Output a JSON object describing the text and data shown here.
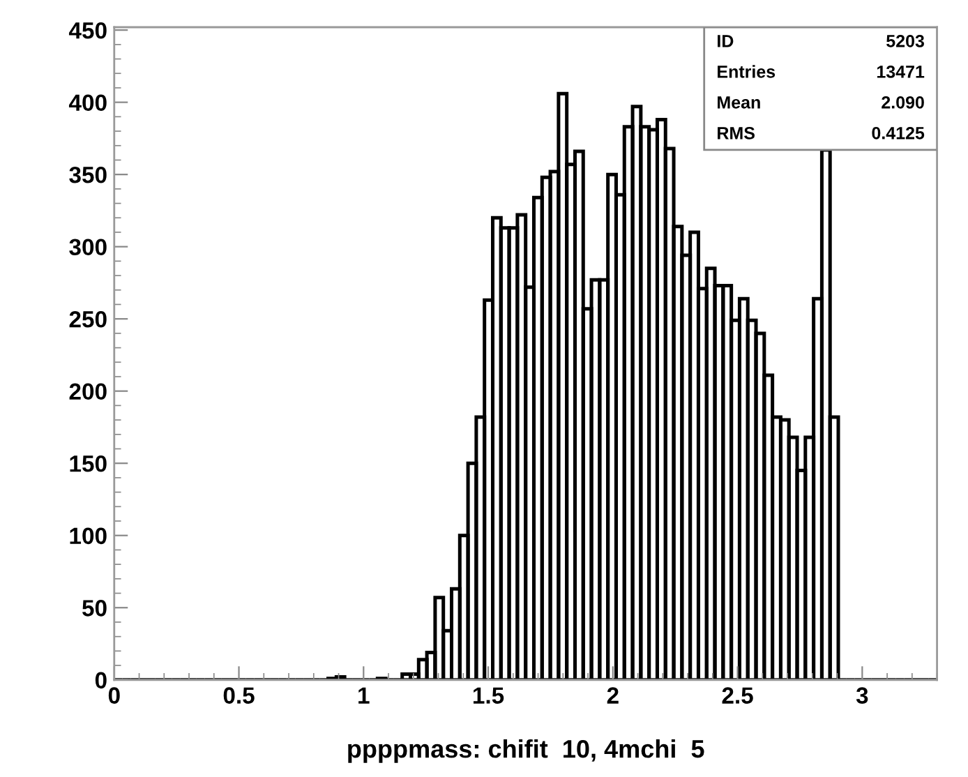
{
  "chart_data": {
    "type": "histogram",
    "bins": [
      0,
      0.033,
      0.066,
      0.099,
      0.132,
      0.165,
      0.198,
      0.231,
      0.264,
      0.297,
      0.33,
      0.363,
      0.396,
      0.429,
      0.462,
      0.495,
      0.528,
      0.561,
      0.594,
      0.627,
      0.66,
      0.693,
      0.726,
      0.759,
      0.792,
      0.825,
      0.858,
      0.891,
      0.924,
      0.957,
      0.99,
      1.023,
      1.056,
      1.089,
      1.122,
      1.155,
      1.188,
      1.221,
      1.254,
      1.287,
      1.32,
      1.353,
      1.386,
      1.419,
      1.452,
      1.485,
      1.518,
      1.551,
      1.584,
      1.617,
      1.65,
      1.683,
      1.716,
      1.749,
      1.782,
      1.815,
      1.848,
      1.881,
      1.914,
      1.947,
      1.98,
      2.013,
      2.046,
      2.079,
      2.112,
      2.145,
      2.178,
      2.211,
      2.244,
      2.277,
      2.31,
      2.343,
      2.376,
      2.409,
      2.442,
      2.475,
      2.508,
      2.541,
      2.574,
      2.607,
      2.64,
      2.673,
      2.706,
      2.739,
      2.772,
      2.805,
      2.838,
      2.871,
      2.904,
      2.937,
      2.97,
      3.003,
      3.036,
      3.069,
      3.102,
      3.135,
      3.168,
      3.201,
      3.234,
      3.267,
      3.3
    ],
    "values": [
      0,
      0,
      0,
      0,
      0,
      0,
      0,
      0,
      0,
      0,
      0,
      0,
      0,
      0,
      0,
      0,
      0,
      0,
      0,
      0,
      0,
      0,
      0,
      0,
      0,
      0,
      1,
      2,
      0,
      0,
      0,
      0,
      1,
      0,
      0,
      4,
      4,
      14,
      19,
      57,
      34,
      63,
      100,
      150,
      182,
      263,
      320,
      313,
      313,
      322,
      272,
      334,
      348,
      352,
      406,
      357,
      366,
      257,
      277,
      277,
      350,
      336,
      383,
      397,
      383,
      381,
      388,
      368,
      314,
      294,
      310,
      271,
      285,
      273,
      273,
      249,
      264,
      249,
      240,
      211,
      182,
      180,
      168,
      145,
      168,
      264,
      367,
      182,
      0,
      0,
      0,
      0,
      0,
      0,
      0,
      0,
      0,
      0,
      0,
      0
    ],
    "color": "#000000",
    "xlabel": "ppppmass: chifit  10, 4mchi  5",
    "xlim": [
      0,
      3.3
    ],
    "ylim": [
      0,
      452
    ],
    "xticks": [
      0,
      0.5,
      1,
      1.5,
      2,
      2.5,
      3
    ],
    "yticks": [
      0,
      50,
      100,
      150,
      200,
      250,
      300,
      350,
      400,
      450
    ],
    "annotations": [
      "ID",
      "5203",
      "Entries",
      "13471",
      "Mean",
      "2.090",
      "RMS",
      "0.4125"
    ]
  }
}
